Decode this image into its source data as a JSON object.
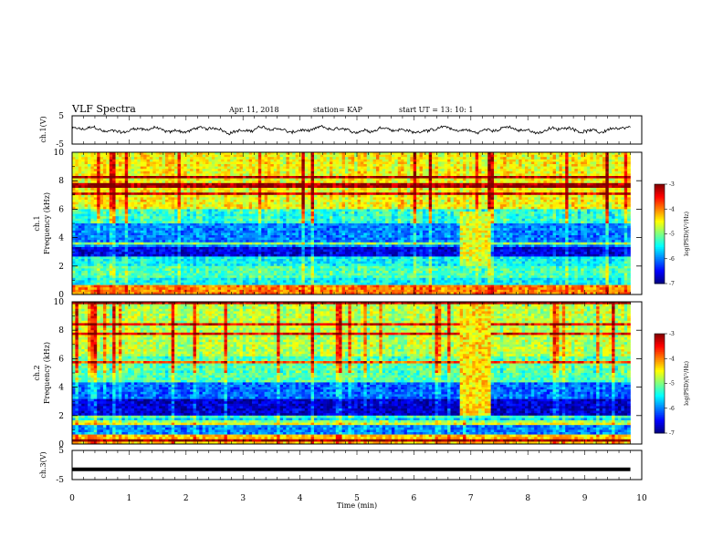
{
  "header": {
    "title": "VLF Spectra",
    "date": "Apr. 11, 2018",
    "station": "station= KAP",
    "start": "start  UT =   13: 10: 1"
  },
  "chart_data": [
    {
      "type": "line",
      "name": "ch1-waveform",
      "ylabel": "ch.1(V)",
      "yticks": [
        "5",
        "-5"
      ],
      "ylim": [
        -5,
        5
      ],
      "xlim": [
        0,
        10
      ],
      "x_coverage": [
        0,
        9.8
      ],
      "trace": "noisy waveform around 0 V, amplitude about ±1.5 V"
    },
    {
      "type": "heatmap",
      "name": "ch1-spectrogram",
      "ylabel": "ch.1\nFrequency  (kHz)",
      "yticks": [
        "10",
        "8",
        "6",
        "4",
        "2",
        "0"
      ],
      "ylim": [
        0,
        10
      ],
      "xlim": [
        0,
        10
      ],
      "x_coverage": [
        0,
        9.8
      ],
      "colorbar": {
        "label": "log(PSD)(V²/Hz)",
        "ticks": [
          "-3",
          "-4",
          "-5",
          "-6",
          "-7"
        ],
        "range": [
          -7,
          -3
        ],
        "colormap": "jet"
      },
      "bands": [
        {
          "f": [
            0,
            0.6
          ],
          "level": -4.0
        },
        {
          "f": [
            0.6,
            1.2
          ],
          "level": -5.5
        },
        {
          "f": [
            1.2,
            2.0
          ],
          "level": -5.2
        },
        {
          "f": [
            2.0,
            2.6
          ],
          "level": -5.5
        },
        {
          "f": [
            2.6,
            3.4
          ],
          "level": -6.6
        },
        {
          "f": [
            3.4,
            5.0
          ],
          "level": -6.0
        },
        {
          "f": [
            5.0,
            6.0
          ],
          "level": -5.3
        },
        {
          "f": [
            6.0,
            10.0
          ],
          "level": -4.5
        }
      ],
      "event": {
        "t": [
          6.8,
          7.35
        ],
        "f": [
          2.0,
          5.8
        ],
        "level": -4.6
      }
    },
    {
      "type": "heatmap",
      "name": "ch2-spectrogram",
      "ylabel": "ch.2\nFrequency  (kHz)",
      "yticks": [
        "10",
        "8",
        "6",
        "4",
        "2",
        "0"
      ],
      "ylim": [
        0,
        10
      ],
      "xlim": [
        0,
        10
      ],
      "x_coverage": [
        0,
        9.8
      ],
      "colorbar": {
        "label": "log(PSD)(V²/Hz)",
        "ticks": [
          "-3",
          "-4",
          "-5",
          "-6",
          "-7"
        ],
        "range": [
          -7,
          -3
        ],
        "colormap": "jet"
      },
      "bands": [
        {
          "f": [
            0,
            0.7
          ],
          "level": -4.3
        },
        {
          "f": [
            0.7,
            1.5
          ],
          "level": -6.0
        },
        {
          "f": [
            1.5,
            3.2
          ],
          "level": -6.7
        },
        {
          "f": [
            3.2,
            4.3
          ],
          "level": -6.1
        },
        {
          "f": [
            4.3,
            6.2
          ],
          "level": -5.2
        },
        {
          "f": [
            6.2,
            10.0
          ],
          "level": -4.8
        }
      ],
      "event": {
        "t": [
          6.8,
          7.35
        ],
        "f": [
          2.0,
          9.8
        ],
        "level": -4.4
      }
    },
    {
      "type": "line",
      "name": "ch3-waveform",
      "ylabel": "ch.3(V)",
      "yticks": [
        "5",
        "-5"
      ],
      "ylim": [
        -5,
        5
      ],
      "xlim": [
        0,
        10
      ],
      "x_coverage": [
        0,
        9.8
      ],
      "constant_value": -1.5
    }
  ],
  "xaxis": {
    "label": "Time  (min)",
    "ticks": [
      "0",
      "1",
      "2",
      "3",
      "4",
      "5",
      "6",
      "7",
      "8",
      "9",
      "10"
    ]
  },
  "colors": {
    "trace": "#000000",
    "jet": [
      "#00008f",
      "#0000ff",
      "#00ffff",
      "#ffff00",
      "#ff0000",
      "#800000"
    ]
  }
}
